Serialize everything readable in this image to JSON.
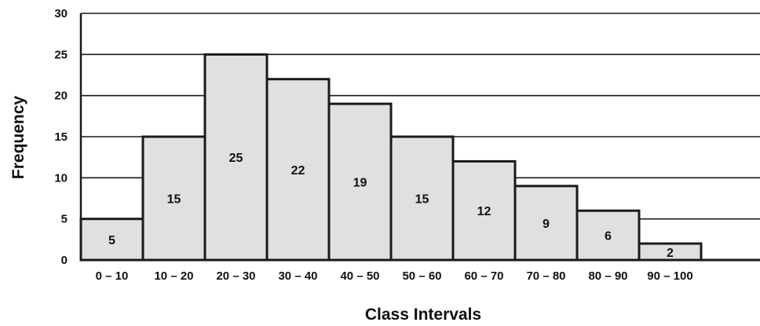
{
  "chart_data": {
    "type": "bar",
    "categories": [
      "0 – 10",
      "10 – 20",
      "20 – 30",
      "30 – 40",
      "40 – 50",
      "50 – 60",
      "60 – 70",
      "70 – 80",
      "80 – 90",
      "90 – 100"
    ],
    "values": [
      5,
      15,
      25,
      22,
      19,
      15,
      12,
      9,
      6,
      2
    ],
    "data_labels": [
      "5",
      "15",
      "25",
      "22",
      "19",
      "15",
      "12",
      "9",
      "6",
      "2"
    ],
    "title": "",
    "xlabel": "Class Intervals",
    "ylabel": "Frequency",
    "ylim": [
      0,
      30
    ],
    "yticks": [
      "0",
      "5",
      "10",
      "15",
      "20",
      "25",
      "30"
    ],
    "grid": true,
    "colors": {
      "bar_fill": "#e0e0e0",
      "bar_stroke": "#1a1a1a",
      "grid": "#1a1a1a",
      "text": "#111111"
    }
  }
}
